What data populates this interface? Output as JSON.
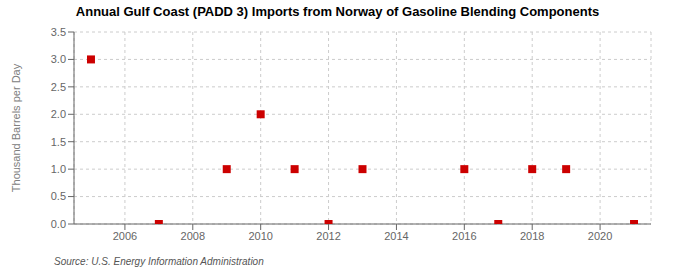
{
  "chart_data": {
    "type": "scatter",
    "title": "Annual Gulf Coast (PADD 3) Imports from Norway of Gasoline Blending Components",
    "ylabel": "Thousand Barrels per Day",
    "source": "Source: U.S. Energy Information Administration",
    "x": [
      2005,
      2007,
      2009,
      2010,
      2011,
      2012,
      2013,
      2016,
      2017,
      2018,
      2019,
      2021
    ],
    "values": [
      3.0,
      0.0,
      1.0,
      2.0,
      1.0,
      0.0,
      1.0,
      1.0,
      0.0,
      1.0,
      1.0,
      0.0
    ],
    "color": "#cc0000",
    "marker": "square",
    "xlim": [
      2004.5,
      2021.5
    ],
    "xticks": [
      2006,
      2008,
      2010,
      2012,
      2014,
      2016,
      2018,
      2020
    ],
    "ylim": [
      0.0,
      3.5
    ],
    "yticks": [
      {
        "value": 0.0,
        "label": "0.0"
      },
      0.5,
      {
        "value": 1.0,
        "label": "1.0"
      },
      1.5,
      {
        "value": 2.0,
        "label": "2.0"
      },
      2.5,
      {
        "value": 3.0,
        "label": "3.0"
      },
      3.5
    ],
    "grid": true
  }
}
